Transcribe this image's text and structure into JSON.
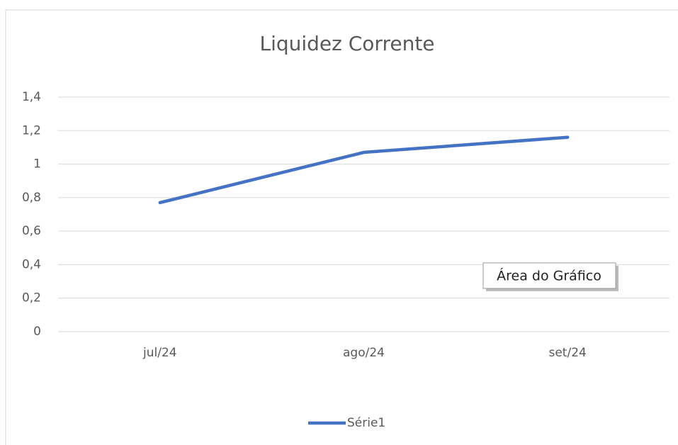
{
  "chart_data": {
    "type": "line",
    "title": "Liquidez Corrente",
    "categories": [
      "jul/24",
      "ago/24",
      "set/24"
    ],
    "series": [
      {
        "name": "Série1",
        "color": "#4472c4",
        "values": [
          0.77,
          1.07,
          1.16
        ]
      }
    ],
    "ylim": [
      0,
      1.4
    ],
    "yticks": [
      0,
      {
        "value": 0.2,
        "label": "0,2"
      },
      {
        "value": 0.4,
        "label": "0,4"
      },
      {
        "value": 0.6,
        "label": "0,6"
      },
      {
        "value": 0.8,
        "label": "0,8"
      },
      1,
      {
        "value": 1.2,
        "label": "1,2"
      },
      {
        "value": 1.4,
        "label": "1,4"
      }
    ],
    "grid": true,
    "legend": "bottom",
    "tooltip": "Área do Gráfico"
  }
}
